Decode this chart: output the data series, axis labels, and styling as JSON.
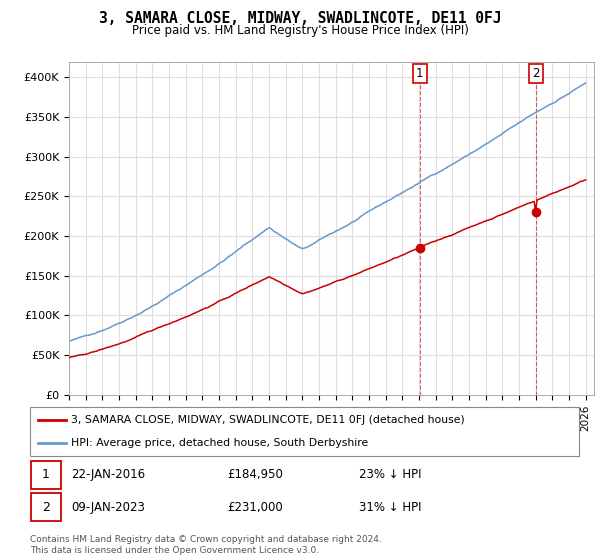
{
  "title": "3, SAMARA CLOSE, MIDWAY, SWADLINCOTE, DE11 0FJ",
  "subtitle": "Price paid vs. HM Land Registry's House Price Index (HPI)",
  "ylabel_ticks": [
    "£0",
    "£50K",
    "£100K",
    "£150K",
    "£200K",
    "£250K",
    "£300K",
    "£350K",
    "£400K"
  ],
  "ytick_values": [
    0,
    50000,
    100000,
    150000,
    200000,
    250000,
    300000,
    350000,
    400000
  ],
  "ylim": [
    0,
    420000
  ],
  "xlim_start": 1995.0,
  "xlim_end": 2026.5,
  "hpi_color": "#6699cc",
  "price_color": "#cc0000",
  "sale1_year": 2016.05,
  "sale1_price": 184950,
  "sale2_year": 2023.03,
  "sale2_price": 231000,
  "legend_house_label": "3, SAMARA CLOSE, MIDWAY, SWADLINCOTE, DE11 0FJ (detached house)",
  "legend_hpi_label": "HPI: Average price, detached house, South Derbyshire",
  "row1_date": "22-JAN-2016",
  "row1_price": "£184,950",
  "row1_pct": "23% ↓ HPI",
  "row2_date": "09-JAN-2023",
  "row2_price": "£231,000",
  "row2_pct": "31% ↓ HPI",
  "footnote": "Contains HM Land Registry data © Crown copyright and database right 2024.\nThis data is licensed under the Open Government Licence v3.0.",
  "bg_color": "#ffffff",
  "grid_color": "#dddddd"
}
